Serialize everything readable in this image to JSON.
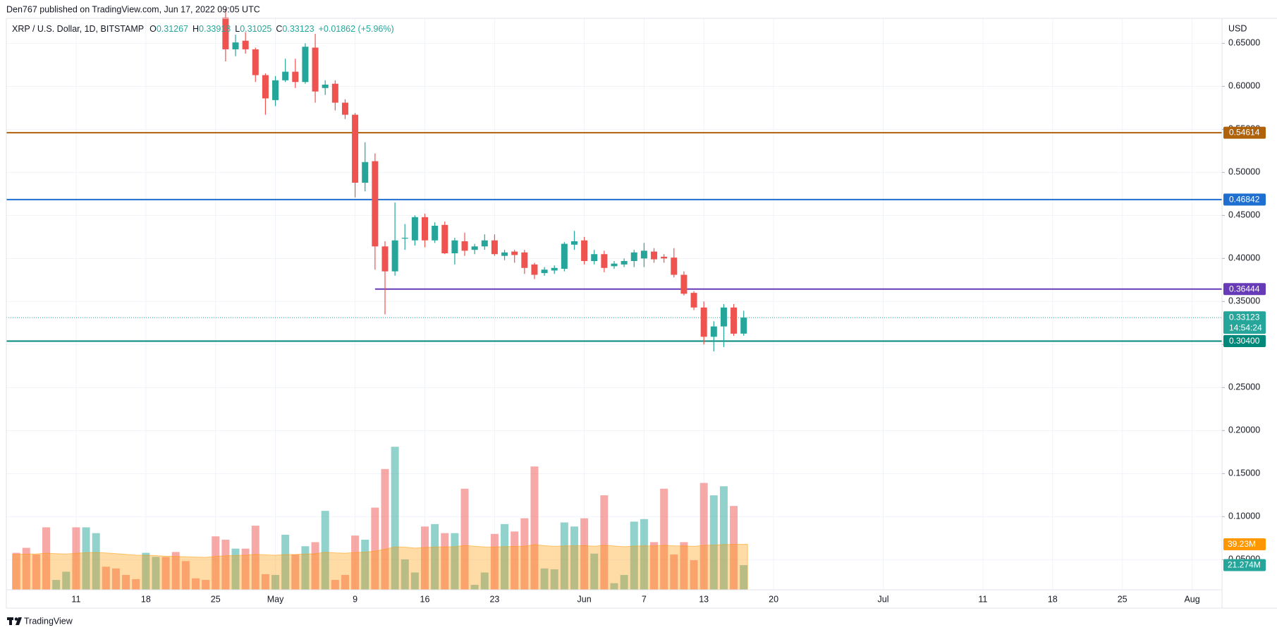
{
  "chart_data": {
    "type": "candlestick",
    "header": "Den767 published on TradingView.com, Jun 17, 2022 09:05 UTC",
    "title": "XRP / U.S. Dollar, 1D, BITSTAMP",
    "ohlc_letters": [
      "O",
      "H",
      "L",
      "C"
    ],
    "change": "+0.01862 (+5.96%)",
    "currency": "USD",
    "countdown": "14:54:24",
    "footer": "TradingView",
    "up_color": "#26a69a",
    "down_color": "#ef5350",
    "grid": true,
    "xlim": [
      "2022-04-04",
      "2022-08-04"
    ],
    "ylim": [
      0.015,
      0.679
    ],
    "xticks": [
      {
        "value": "2022-04-11",
        "label": "11"
      },
      {
        "value": "2022-04-18",
        "label": "18"
      },
      {
        "value": "2022-04-25",
        "label": "25"
      },
      {
        "value": "2022-05-01",
        "label": "May"
      },
      {
        "value": "2022-05-09",
        "label": "9"
      },
      {
        "value": "2022-05-16",
        "label": "16"
      },
      {
        "value": "2022-05-23",
        "label": "23"
      },
      {
        "value": "2022-06-01",
        "label": "Jun"
      },
      {
        "value": "2022-06-07",
        "label": "7"
      },
      {
        "value": "2022-06-13",
        "label": "13"
      },
      {
        "value": "2022-06-20",
        "label": "20"
      },
      {
        "value": "2022-07-01",
        "label": "Jul"
      },
      {
        "value": "2022-07-11",
        "label": "11"
      },
      {
        "value": "2022-07-18",
        "label": "18"
      },
      {
        "value": "2022-07-25",
        "label": "25"
      },
      {
        "value": "2022-08-01",
        "label": "Aug"
      }
    ],
    "yticks": [
      {
        "value": 0.65,
        "label": "0.65000"
      },
      {
        "value": 0.6,
        "label": "0.60000"
      },
      {
        "value": 0.55,
        "label": "0.55000"
      },
      {
        "value": 0.5,
        "label": "0.50000"
      },
      {
        "value": 0.45,
        "label": "0.45000"
      },
      {
        "value": 0.4,
        "label": "0.40000"
      },
      {
        "value": 0.35,
        "label": "0.35000"
      },
      {
        "value": 0.3,
        "label": "0.30000"
      },
      {
        "value": 0.25,
        "label": "0.25000"
      },
      {
        "value": 0.2,
        "label": "0.20000"
      },
      {
        "value": 0.15,
        "label": "0.15000"
      },
      {
        "value": 0.1,
        "label": "0.10000"
      },
      {
        "value": 0.05,
        "label": "0.05000"
      }
    ],
    "levels": [
      {
        "value": 0.54614,
        "color": "#b0620a"
      },
      {
        "value": 0.46842,
        "color": "#1e6fcf"
      },
      {
        "value": 0.36444,
        "color": "#673ab7",
        "start": "2022-05-11"
      },
      {
        "value": 0.304,
        "label": "0.30400",
        "color": "#00897b"
      }
    ],
    "dates": [
      "2022-04-26",
      "2022-04-27",
      "2022-04-28",
      "2022-04-29",
      "2022-04-30",
      "2022-05-01",
      "2022-05-02",
      "2022-05-03",
      "2022-05-04",
      "2022-05-05",
      "2022-05-06",
      "2022-05-07",
      "2022-05-08",
      "2022-05-09",
      "2022-05-10",
      "2022-05-11",
      "2022-05-12",
      "2022-05-13",
      "2022-05-14",
      "2022-05-15",
      "2022-05-16",
      "2022-05-17",
      "2022-05-18",
      "2022-05-19",
      "2022-05-20",
      "2022-05-21",
      "2022-05-22",
      "2022-05-23",
      "2022-05-24",
      "2022-05-25",
      "2022-05-26",
      "2022-05-27",
      "2022-05-28",
      "2022-05-29",
      "2022-05-30",
      "2022-05-31",
      "2022-06-01",
      "2022-06-02",
      "2022-06-03",
      "2022-06-04",
      "2022-06-05",
      "2022-06-06",
      "2022-06-07",
      "2022-06-08",
      "2022-06-09",
      "2022-06-10",
      "2022-06-11",
      "2022-06-12",
      "2022-06-13",
      "2022-06-14",
      "2022-06-15",
      "2022-06-16",
      "2022-06-17"
    ],
    "open": [
      0.68,
      0.643,
      0.653,
      0.643,
      0.613,
      0.584,
      0.607,
      0.617,
      0.605,
      0.645,
      0.598,
      0.603,
      0.581,
      0.567,
      0.488,
      0.513,
      0.414,
      0.385,
      0.423,
      0.421,
      0.448,
      0.421,
      0.439,
      0.406,
      0.42,
      0.41,
      0.414,
      0.421,
      0.403,
      0.408,
      0.407,
      0.393,
      0.383,
      0.386,
      0.388,
      0.416,
      0.421,
      0.397,
      0.405,
      0.391,
      0.393,
      0.397,
      0.4,
      0.408,
      0.402,
      0.401,
      0.381,
      0.36,
      0.343,
      0.309,
      0.321,
      0.343,
      0.31267
    ],
    "high": [
      0.69,
      0.66,
      0.663,
      0.645,
      0.615,
      0.612,
      0.632,
      0.632,
      0.65,
      0.661,
      0.607,
      0.607,
      0.585,
      0.569,
      0.535,
      0.522,
      0.42,
      0.465,
      0.44,
      0.45,
      0.452,
      0.442,
      0.443,
      0.424,
      0.43,
      0.417,
      0.428,
      0.428,
      0.41,
      0.41,
      0.41,
      0.395,
      0.39,
      0.392,
      0.419,
      0.432,
      0.425,
      0.41,
      0.409,
      0.397,
      0.4,
      0.41,
      0.418,
      0.412,
      0.405,
      0.412,
      0.385,
      0.362,
      0.35,
      0.327,
      0.347,
      0.347,
      0.33918
    ],
    "low": [
      0.629,
      0.635,
      0.638,
      0.605,
      0.567,
      0.577,
      0.605,
      0.598,
      0.603,
      0.581,
      0.59,
      0.572,
      0.562,
      0.471,
      0.478,
      0.387,
      0.335,
      0.38,
      0.41,
      0.415,
      0.413,
      0.418,
      0.405,
      0.393,
      0.403,
      0.405,
      0.41,
      0.403,
      0.398,
      0.395,
      0.382,
      0.376,
      0.38,
      0.382,
      0.385,
      0.41,
      0.393,
      0.393,
      0.384,
      0.388,
      0.39,
      0.39,
      0.39,
      0.395,
      0.395,
      0.378,
      0.357,
      0.34,
      0.3,
      0.292,
      0.297,
      0.31,
      0.31025
    ],
    "close": [
      0.643,
      0.651,
      0.643,
      0.613,
      0.586,
      0.607,
      0.617,
      0.605,
      0.646,
      0.594,
      0.602,
      0.581,
      0.567,
      0.488,
      0.512,
      0.414,
      0.385,
      0.421,
      0.424,
      0.448,
      0.421,
      0.438,
      0.406,
      0.421,
      0.409,
      0.414,
      0.421,
      0.405,
      0.407,
      0.404,
      0.389,
      0.381,
      0.387,
      0.389,
      0.417,
      0.42,
      0.397,
      0.405,
      0.389,
      0.394,
      0.397,
      0.407,
      0.409,
      0.399,
      0.4,
      0.381,
      0.359,
      0.343,
      0.309,
      0.321,
      0.343,
      0.31261,
      0.33123
    ],
    "volume": {
      "ylim": [
        0,
        493
      ],
      "dates": [
        "2022-04-05",
        "2022-04-06",
        "2022-04-07",
        "2022-04-08",
        "2022-04-09",
        "2022-04-10",
        "2022-04-11",
        "2022-04-12",
        "2022-04-13",
        "2022-04-14",
        "2022-04-15",
        "2022-04-16",
        "2022-04-17",
        "2022-04-18",
        "2022-04-19",
        "2022-04-20",
        "2022-04-21",
        "2022-04-22",
        "2022-04-23",
        "2022-04-24",
        "2022-04-25",
        "2022-04-26",
        "2022-04-27",
        "2022-04-28",
        "2022-04-29",
        "2022-04-30",
        "2022-05-01",
        "2022-05-02",
        "2022-05-03",
        "2022-05-04",
        "2022-05-05",
        "2022-05-06",
        "2022-05-07",
        "2022-05-08",
        "2022-05-09",
        "2022-05-10",
        "2022-05-11",
        "2022-05-12",
        "2022-05-13",
        "2022-05-14",
        "2022-05-15",
        "2022-05-16",
        "2022-05-17",
        "2022-05-18",
        "2022-05-19",
        "2022-05-20",
        "2022-05-21",
        "2022-05-22",
        "2022-05-23",
        "2022-05-24",
        "2022-05-25",
        "2022-05-26",
        "2022-05-27",
        "2022-05-28",
        "2022-05-29",
        "2022-05-30",
        "2022-05-31",
        "2022-06-01",
        "2022-06-02",
        "2022-06-03",
        "2022-06-04",
        "2022-06-05",
        "2022-06-06",
        "2022-06-07",
        "2022-06-08",
        "2022-06-09",
        "2022-06-10",
        "2022-06-11",
        "2022-06-12",
        "2022-06-13",
        "2022-06-14",
        "2022-06-15",
        "2022-06-16",
        "2022-06-17"
      ],
      "values": [
        31.9,
        36.2,
        30.5,
        53.9,
        8.5,
        15.6,
        53.9,
        53.9,
        48.9,
        19.9,
        18.4,
        12.8,
        9.2,
        31.9,
        28.4,
        28.4,
        32.6,
        24.8,
        9.9,
        8.5,
        46.1,
        43.2,
        35.5,
        35.5,
        55.3,
        13.5,
        12.8,
        47.5,
        30.5,
        37.6,
        41.1,
        68.1,
        8.5,
        12.8,
        46.8,
        43.2,
        70.9,
        104.2,
        123.4,
        26.2,
        14.9,
        54.6,
        56.7,
        48.9,
        48.9,
        87.2,
        4.3,
        14.9,
        48.2,
        56.7,
        50.3,
        61.7,
        106.4,
        18.4,
        17.7,
        58.1,
        54.6,
        61.7,
        31.2,
        81.5,
        5.7,
        12.8,
        58.8,
        61.0,
        41.1,
        87.2,
        30.5,
        41.1,
        25.5,
        92.2,
        81.5,
        89.3,
        72.3,
        21.274
      ],
      "value_label": "21.274M",
      "colors": [
        "#ef5350",
        "#ef5350",
        "#ef5350",
        "#ef5350",
        "#26a69a",
        "#26a69a",
        "#ef5350",
        "#26a69a",
        "#26a69a",
        "#ef5350",
        "#ef5350",
        "#ef5350",
        "#ef5350",
        "#26a69a",
        "#26a69a",
        "#ef5350",
        "#ef5350",
        "#ef5350",
        "#ef5350",
        "#ef5350",
        "#ef5350",
        "#ef5350",
        "#26a69a",
        "#ef5350",
        "#ef5350",
        "#ef5350",
        "#26a69a",
        "#26a69a",
        "#ef5350",
        "#26a69a",
        "#ef5350",
        "#26a69a",
        "#ef5350",
        "#ef5350",
        "#ef5350",
        "#26a69a",
        "#ef5350",
        "#ef5350",
        "#26a69a",
        "#26a69a",
        "#26a69a",
        "#ef5350",
        "#26a69a",
        "#ef5350",
        "#26a69a",
        "#ef5350",
        "#26a69a",
        "#26a69a",
        "#ef5350",
        "#26a69a",
        "#ef5350",
        "#ef5350",
        "#ef5350",
        "#26a69a",
        "#26a69a",
        "#26a69a",
        "#26a69a",
        "#ef5350",
        "#26a69a",
        "#ef5350",
        "#26a69a",
        "#26a69a",
        "#26a69a",
        "#26a69a",
        "#ef5350",
        "#ef5350",
        "#ef5350",
        "#ef5350",
        "#ef5350",
        "#ef5350",
        "#26a69a",
        "#26a69a",
        "#ef5350",
        "#26a69a"
      ],
      "ma": [
        30.5,
        30.8,
        31.0,
        31.6,
        31.2,
        30.9,
        31.5,
        32.0,
        32.2,
        31.8,
        31.2,
        30.6,
        29.9,
        29.8,
        29.5,
        29.0,
        28.8,
        28.5,
        28.2,
        28.0,
        28.8,
        29.3,
        29.6,
        29.9,
        30.6,
        30.2,
        29.8,
        30.4,
        30.5,
        30.8,
        31.1,
        32.4,
        31.9,
        31.6,
        32.2,
        32.5,
        33.4,
        35.0,
        37.0,
        36.8,
        36.0,
        36.5,
        36.9,
        37.0,
        37.2,
        38.3,
        37.6,
        37.0,
        36.9,
        37.3,
        37.4,
        37.6,
        39.0,
        38.1,
        37.5,
        37.9,
        38.0,
        38.2,
        37.6,
        38.5,
        37.8,
        37.2,
        37.7,
        38.0,
        37.8,
        38.5,
        38.0,
        37.9,
        37.4,
        38.4,
        38.6,
        39.0,
        39.2,
        39.23
      ],
      "ma_color": "#ff9800",
      "ma_label": "39.23M"
    }
  }
}
